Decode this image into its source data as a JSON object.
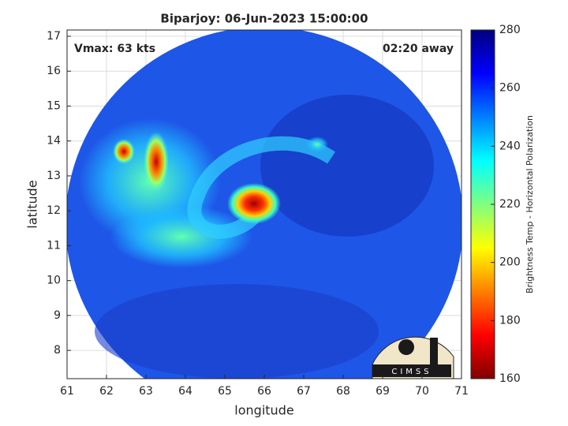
{
  "chart_data": {
    "type": "image",
    "title": "Biparjoy: 06-Jun-2023 15:00:00",
    "x_label": "longitude",
    "y_label": "latitude",
    "annotations": [
      "Vmax: 63 kts",
      "02:20 away"
    ],
    "logo_text": "CIMSS",
    "xlim": [
      61,
      71
    ],
    "xticks": [
      61,
      62,
      63,
      64,
      65,
      66,
      67,
      68,
      69,
      70,
      71
    ],
    "ylim": [
      7.19,
      17.18
    ],
    "yticks": [
      8,
      9,
      10,
      11,
      12,
      13,
      14,
      15,
      16,
      17
    ],
    "grid": true,
    "colorbar": {
      "label": "Brightness Temp - Horizontal Polarization",
      "colormap": "jet",
      "lim": [
        160,
        280
      ],
      "ticks": [
        160,
        180,
        200,
        220,
        240,
        260,
        280
      ]
    }
  }
}
